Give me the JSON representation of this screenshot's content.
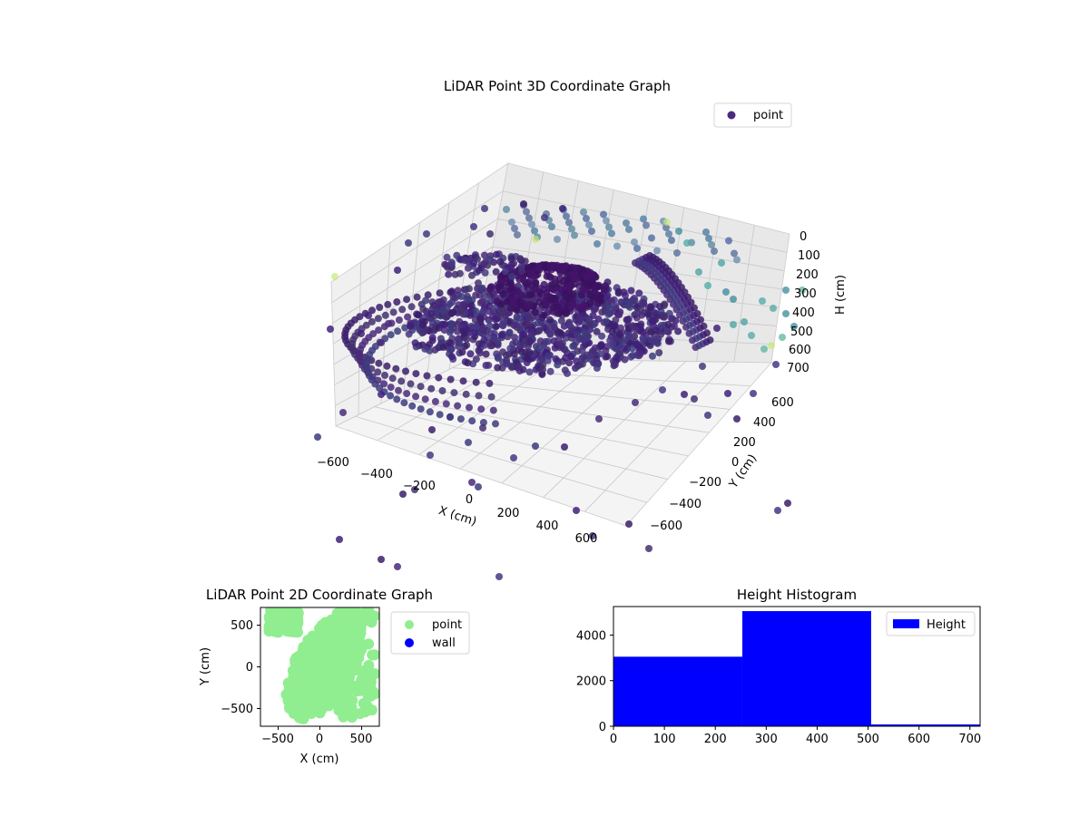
{
  "chart_data": [
    {
      "type": "scatter3d",
      "title": "LiDAR Point 3D Coordinate Graph",
      "xlabel": "X (cm)",
      "ylabel": "Y (cm)",
      "zlabel": "H (cm)",
      "xlim": [
        -700,
        700
      ],
      "ylim": [
        -700,
        700
      ],
      "zlim": [
        0,
        700
      ],
      "z_inverted": true,
      "xticks": [
        "−600",
        "−400",
        "−200",
        "0",
        "200",
        "400",
        "600"
      ],
      "yticks": [
        "−600",
        "−400",
        "−200",
        "0",
        "200",
        "400",
        "600"
      ],
      "zticks": [
        "0",
        "100",
        "200",
        "300",
        "400",
        "500",
        "600",
        "700"
      ],
      "legend": {
        "entries": [
          "point"
        ],
        "position": "upper-right"
      },
      "colormap": "viridis",
      "point_color": "#4b2a7e",
      "grid": true
    },
    {
      "type": "scatter",
      "title": "LiDAR Point 2D Coordinate Graph",
      "xlabel": "X (cm)",
      "ylabel": "Y (cm)",
      "xlim": [
        -700,
        700
      ],
      "ylim": [
        -700,
        700
      ],
      "xticks": [
        "−500",
        "0",
        "500"
      ],
      "yticks": [
        "−500",
        "0",
        "500"
      ],
      "series": [
        {
          "name": "point",
          "color": "#90ee90"
        },
        {
          "name": "wall",
          "color": "#0000ff"
        }
      ],
      "legend_position": "outside-right"
    },
    {
      "type": "bar",
      "title": "Height Histogram",
      "xlim": [
        0,
        720
      ],
      "ylim": [
        0,
        5250
      ],
      "xticks": [
        "0",
        "100",
        "200",
        "300",
        "400",
        "500",
        "600",
        "700"
      ],
      "yticks": [
        "0",
        "2000",
        "4000"
      ],
      "bins": [
        {
          "start": 0,
          "end": 253,
          "count": 3050
        },
        {
          "start": 253,
          "end": 506,
          "count": 5050
        },
        {
          "start": 506,
          "end": 720,
          "count": 80
        }
      ],
      "series": [
        {
          "name": "Height",
          "color": "#0000ff"
        }
      ],
      "legend_position": "upper-right"
    }
  ]
}
